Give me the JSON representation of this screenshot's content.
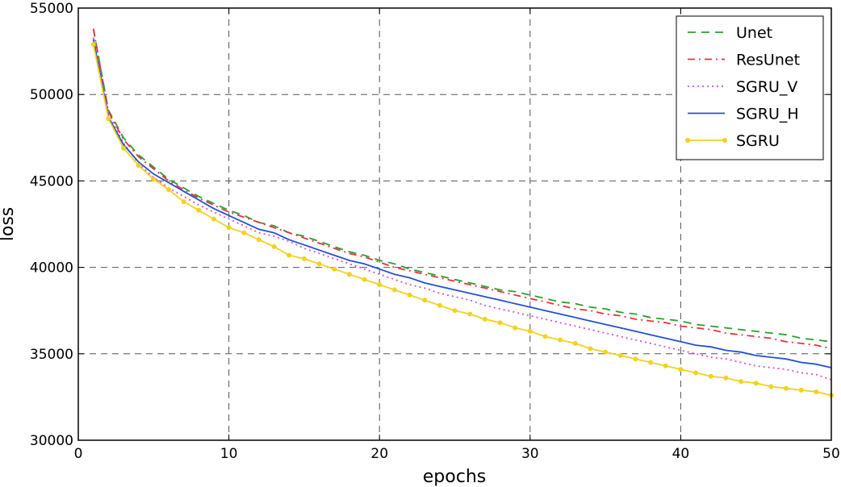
{
  "chart_data": {
    "type": "line",
    "title": "",
    "xlabel": "epochs",
    "ylabel": "loss",
    "xlim": [
      0,
      50
    ],
    "ylim": [
      30000,
      55000
    ],
    "xticks": [
      0,
      10,
      20,
      30,
      40,
      50
    ],
    "yticks": [
      30000,
      35000,
      40000,
      45000,
      50000,
      55000
    ],
    "xtick_labels": [
      "0",
      "10",
      "20",
      "30",
      "40",
      "50"
    ],
    "ytick_labels": [
      "30000",
      "35000",
      "40000",
      "45000",
      "50000",
      "55000"
    ],
    "grid": true,
    "legend_position": "top-right",
    "x": [
      1,
      2,
      3,
      4,
      5,
      6,
      7,
      8,
      9,
      10,
      11,
      12,
      13,
      14,
      15,
      16,
      17,
      18,
      19,
      20,
      21,
      22,
      23,
      24,
      25,
      26,
      27,
      28,
      29,
      30,
      31,
      32,
      33,
      34,
      35,
      36,
      37,
      38,
      39,
      40,
      41,
      42,
      43,
      44,
      45,
      46,
      47,
      48,
      49,
      50
    ],
    "series": [
      {
        "name": "Unet",
        "color": "#2ca02c",
        "style": "dashed",
        "values": [
          53800,
          49100,
          47500,
          46500,
          45800,
          45100,
          44600,
          44100,
          43700,
          43300,
          43000,
          42600,
          42400,
          42000,
          41800,
          41500,
          41200,
          40900,
          40700,
          40400,
          40200,
          39900,
          39700,
          39500,
          39300,
          39100,
          38900,
          38700,
          38600,
          38400,
          38200,
          38000,
          37900,
          37700,
          37600,
          37400,
          37300,
          37100,
          37000,
          36900,
          36700,
          36600,
          36500,
          36400,
          36300,
          36200,
          36100,
          35900,
          35800,
          35700
        ]
      },
      {
        "name": "ResUnet",
        "color": "#e8333f",
        "style": "dashdot",
        "values": [
          53800,
          49000,
          47400,
          46400,
          45700,
          45000,
          44500,
          44000,
          43600,
          43200,
          42900,
          42600,
          42300,
          42000,
          41700,
          41400,
          41100,
          40800,
          40600,
          40300,
          40000,
          39800,
          39600,
          39400,
          39200,
          39000,
          38800,
          38600,
          38400,
          38200,
          38000,
          37800,
          37600,
          37500,
          37300,
          37200,
          37000,
          36900,
          36800,
          36600,
          36500,
          36400,
          36200,
          36100,
          36000,
          35900,
          35700,
          35600,
          35500,
          35300
        ]
      },
      {
        "name": "SGRU_V",
        "color": "#d64fd6",
        "style": "dotted",
        "values": [
          53300,
          48900,
          47200,
          46000,
          45200,
          44600,
          44100,
          43600,
          43200,
          42800,
          42400,
          42000,
          41800,
          41500,
          41100,
          40800,
          40500,
          40200,
          39900,
          39600,
          39300,
          39000,
          38800,
          38500,
          38300,
          38100,
          37800,
          37600,
          37400,
          37200,
          37000,
          36800,
          36600,
          36400,
          36200,
          36000,
          35800,
          35600,
          35400,
          35200,
          35000,
          34800,
          34700,
          34500,
          34300,
          34200,
          34100,
          33900,
          33800,
          33500
        ]
      },
      {
        "name": "SGRU_H",
        "color": "#2451d4",
        "style": "solid",
        "values": [
          53200,
          48700,
          47100,
          46100,
          45400,
          44900,
          44400,
          43900,
          43400,
          43000,
          42600,
          42200,
          42000,
          41600,
          41300,
          41000,
          40700,
          40400,
          40200,
          39900,
          39600,
          39400,
          39100,
          38900,
          38700,
          38500,
          38300,
          38100,
          37900,
          37700,
          37500,
          37300,
          37100,
          36900,
          36700,
          36500,
          36300,
          36100,
          35900,
          35700,
          35500,
          35400,
          35200,
          35100,
          34900,
          34800,
          34700,
          34500,
          34400,
          34200
        ]
      },
      {
        "name": "SGRU",
        "color": "#f2d21f",
        "style": "solid-marker",
        "values": [
          52900,
          48600,
          46900,
          45900,
          45100,
          44500,
          43800,
          43300,
          42800,
          42300,
          42000,
          41600,
          41200,
          40700,
          40500,
          40200,
          39900,
          39600,
          39300,
          39000,
          38700,
          38400,
          38100,
          37800,
          37500,
          37300,
          37000,
          36800,
          36500,
          36300,
          36000,
          35800,
          35600,
          35300,
          35100,
          34900,
          34700,
          34500,
          34300,
          34100,
          33900,
          33700,
          33600,
          33400,
          33300,
          33100,
          33000,
          32900,
          32800,
          32600
        ]
      }
    ]
  }
}
